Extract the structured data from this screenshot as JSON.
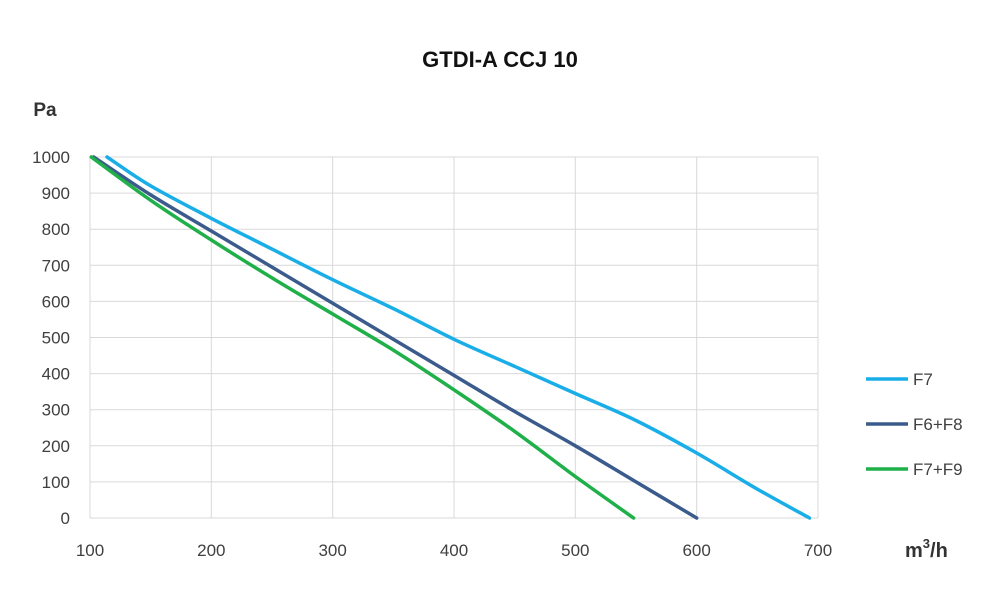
{
  "chart_data": {
    "type": "line",
    "title": "GTDI-A CCJ 10",
    "ylabel": "Pa",
    "xlabel_base": "m",
    "xlabel_sup": "3",
    "xlabel_suffix": "/h",
    "xlim": [
      100,
      700
    ],
    "ylim": [
      0,
      1000
    ],
    "x_ticks": [
      "100",
      "200",
      "300",
      "400",
      "500",
      "600",
      "700"
    ],
    "y_ticks": [
      "0",
      "100",
      "200",
      "300",
      "400",
      "500",
      "600",
      "700",
      "800",
      "900",
      "1000"
    ],
    "grid": true,
    "legend_position": "right",
    "series": [
      {
        "name": "F7",
        "color": "#1aaee8",
        "points": [
          [
            114,
            1000
          ],
          [
            150,
            920
          ],
          [
            200,
            830
          ],
          [
            250,
            745
          ],
          [
            300,
            660
          ],
          [
            350,
            580
          ],
          [
            400,
            495
          ],
          [
            450,
            420
          ],
          [
            500,
            345
          ],
          [
            550,
            270
          ],
          [
            600,
            180
          ],
          [
            650,
            80
          ],
          [
            693,
            0
          ]
        ]
      },
      {
        "name": "F6+F8",
        "color": "#3b5b8c",
        "points": [
          [
            103,
            1000
          ],
          [
            150,
            895
          ],
          [
            200,
            795
          ],
          [
            250,
            695
          ],
          [
            300,
            595
          ],
          [
            350,
            495
          ],
          [
            400,
            395
          ],
          [
            450,
            295
          ],
          [
            500,
            200
          ],
          [
            550,
            100
          ],
          [
            600,
            0
          ]
        ]
      },
      {
        "name": "F7+F9",
        "color": "#1fb04a",
        "points": [
          [
            101,
            1000
          ],
          [
            150,
            880
          ],
          [
            200,
            770
          ],
          [
            250,
            665
          ],
          [
            300,
            565
          ],
          [
            350,
            465
          ],
          [
            400,
            355
          ],
          [
            450,
            240
          ],
          [
            500,
            115
          ],
          [
            548,
            0
          ]
        ]
      }
    ]
  }
}
